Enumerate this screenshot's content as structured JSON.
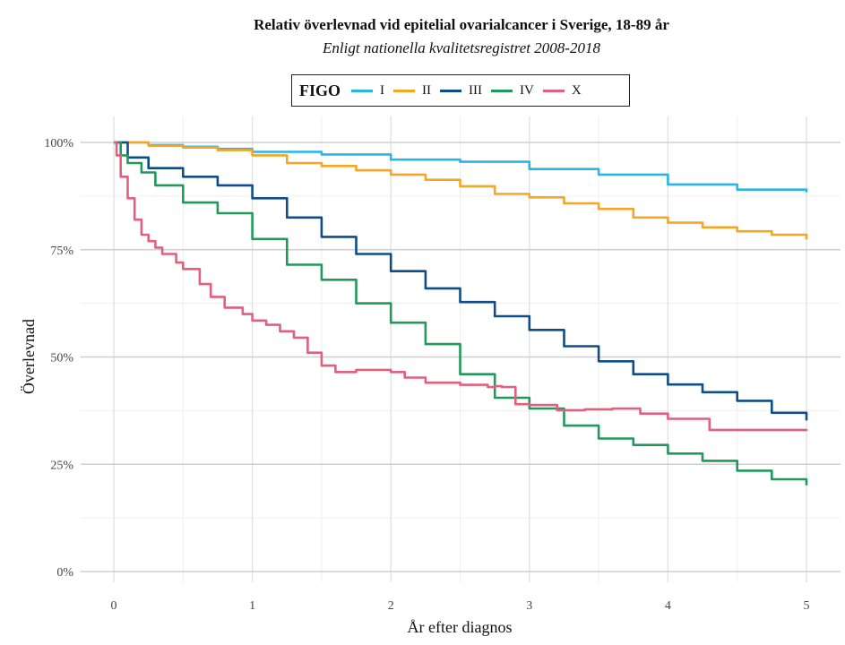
{
  "chart_data": {
    "type": "line",
    "title": "Relativ överlevnad vid epitelial ovarialcancer i Sverige, 18-89 år",
    "subtitle": "Enligt nationella kvalitetsregistret 2008-2018",
    "xlabel": "År efter diagnos",
    "ylabel": "Överlevnad",
    "xlim": [
      0,
      5
    ],
    "ylim": [
      0,
      100
    ],
    "x_ticks": [
      0,
      1,
      2,
      3,
      4,
      5
    ],
    "y_ticks": [
      0,
      25,
      50,
      75,
      100
    ],
    "y_tick_labels": [
      "0%",
      "25%",
      "50%",
      "75%",
      "100%"
    ],
    "grid": true,
    "legend": {
      "title": "FIGO",
      "placement": "top"
    },
    "series": [
      {
        "name": "I",
        "color": "#29b5e8",
        "x": [
          0,
          0.25,
          0.5,
          0.75,
          1.0,
          1.5,
          2.0,
          2.5,
          3.0,
          3.5,
          4.0,
          4.5,
          5.0
        ],
        "y": [
          100,
          99.4,
          99,
          98.5,
          97.8,
          97.2,
          96,
          95.5,
          93.8,
          92.5,
          90.2,
          89,
          88.4
        ]
      },
      {
        "name": "II",
        "color": "#f5a623",
        "x": [
          0,
          0.25,
          0.5,
          0.75,
          1.0,
          1.25,
          1.5,
          1.75,
          2.0,
          2.25,
          2.5,
          2.75,
          3.0,
          3.25,
          3.5,
          3.75,
          4.0,
          4.25,
          4.5,
          4.75,
          5.0
        ],
        "y": [
          100,
          99.2,
          98.8,
          98.2,
          97,
          95.2,
          94.5,
          93.5,
          92.5,
          91.3,
          89.8,
          88,
          87.2,
          85.8,
          84.5,
          82.5,
          81.3,
          80.2,
          79.3,
          78.5,
          77.4
        ]
      },
      {
        "name": "III",
        "color": "#0f4c8a",
        "x": [
          0,
          0.1,
          0.25,
          0.5,
          0.75,
          1.0,
          1.25,
          1.5,
          1.75,
          2.0,
          2.25,
          2.5,
          2.75,
          3.0,
          3.25,
          3.5,
          3.75,
          4.0,
          4.25,
          4.5,
          4.75,
          5.0
        ],
        "y": [
          100,
          96.5,
          94,
          92,
          90,
          87,
          82.5,
          78,
          74,
          70,
          66,
          62.8,
          59.5,
          56.3,
          52.5,
          49,
          46,
          43.6,
          41.8,
          39.8,
          37,
          35.2
        ]
      },
      {
        "name": "IV",
        "color": "#22995c",
        "x": [
          0,
          0.05,
          0.1,
          0.2,
          0.3,
          0.5,
          0.75,
          1.0,
          1.25,
          1.5,
          1.75,
          2.0,
          2.25,
          2.5,
          2.75,
          3.0,
          3.25,
          3.5,
          3.75,
          4.0,
          4.25,
          4.5,
          4.75,
          5.0
        ],
        "y": [
          100,
          97,
          95.2,
          93,
          90,
          86,
          83.5,
          77.5,
          71.5,
          68,
          62.5,
          58,
          53,
          46,
          40.5,
          38,
          34,
          31,
          29.5,
          27.5,
          25.8,
          23.5,
          21.5,
          20.1
        ]
      },
      {
        "name": "X",
        "color": "#e0607e",
        "x": [
          0,
          0.02,
          0.05,
          0.1,
          0.15,
          0.2,
          0.25,
          0.3,
          0.35,
          0.45,
          0.5,
          0.62,
          0.7,
          0.8,
          0.93,
          1.0,
          1.1,
          1.2,
          1.3,
          1.4,
          1.5,
          1.6,
          1.75,
          2.0,
          2.1,
          2.25,
          2.5,
          2.7,
          2.75,
          2.8,
          2.9,
          3.0,
          3.2,
          3.4,
          3.6,
          3.8,
          4.0,
          4.2,
          4.3,
          4.5,
          5.0
        ],
        "y": [
          100,
          97,
          92,
          87,
          82,
          78.5,
          77,
          75.5,
          74,
          72,
          70.5,
          67,
          64,
          61.5,
          60,
          58.5,
          57.5,
          56,
          54.5,
          51,
          48,
          46.5,
          47,
          46.5,
          45.2,
          44,
          43.5,
          43,
          43.2,
          43,
          39,
          38.8,
          37.6,
          37.8,
          38,
          36.8,
          35.6,
          35.6,
          33,
          33,
          33.2
        ]
      }
    ]
  }
}
